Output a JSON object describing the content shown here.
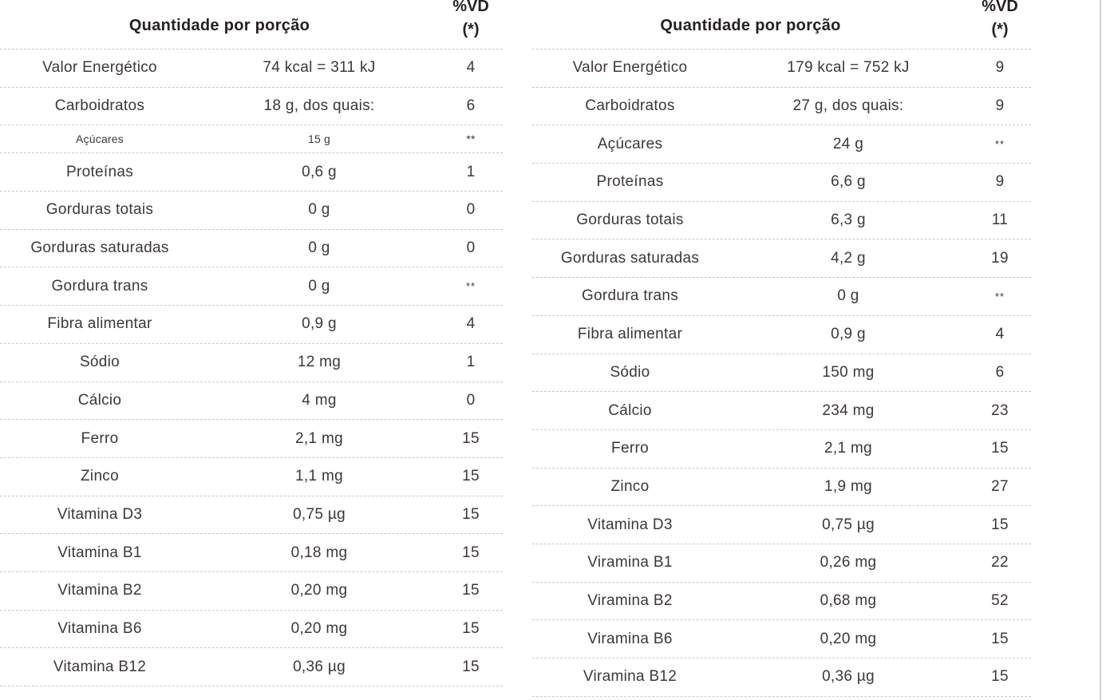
{
  "page": {
    "background": "#ffffff",
    "text_color": "#3e3836",
    "header_text_color": "#262120",
    "divider_color": "#c8c8c8",
    "scrollbar_color": "#d2d2d2"
  },
  "tables": [
    {
      "id": "nutrition-table-1",
      "header": {
        "title": "Quantidade por porção",
        "vd_line1": "%VD",
        "vd_line2": "(*)"
      },
      "rows": [
        {
          "label": "Valor Energético",
          "value": "74 kcal = 311 kJ",
          "vd": "4",
          "small": false
        },
        {
          "label": "Carboidratos",
          "value": "18 g, dos quais:",
          "vd": "6",
          "small": false
        },
        {
          "label": "Açúcares",
          "value": "15 g",
          "vd": "**",
          "small": true
        },
        {
          "label": "Proteínas",
          "value": "0,6 g",
          "vd": "1",
          "small": false
        },
        {
          "label": "Gorduras totais",
          "value": "0 g",
          "vd": "0",
          "small": false
        },
        {
          "label": "Gorduras saturadas",
          "value": "0 g",
          "vd": "0",
          "small": false
        },
        {
          "label": "Gordura trans",
          "value": "0 g",
          "vd": "**",
          "small": false
        },
        {
          "label": "Fibra alimentar",
          "value": "0,9 g",
          "vd": "4",
          "small": false
        },
        {
          "label": "Sódio",
          "value": "12 mg",
          "vd": "1",
          "small": false
        },
        {
          "label": "Cálcio",
          "value": "4 mg",
          "vd": "0",
          "small": false
        },
        {
          "label": "Ferro",
          "value": "2,1 mg",
          "vd": "15",
          "small": false
        },
        {
          "label": "Zinco",
          "value": "1,1 mg",
          "vd": "15",
          "small": false
        },
        {
          "label": "Vitamina D3",
          "value": "0,75 µg",
          "vd": "15",
          "small": false
        },
        {
          "label": "Vitamina B1",
          "value": "0,18 mg",
          "vd": "15",
          "small": false
        },
        {
          "label": "Vitamina B2",
          "value": "0,20 mg",
          "vd": "15",
          "small": false
        },
        {
          "label": "Vitamina B6",
          "value": "0,20 mg",
          "vd": "15",
          "small": false
        },
        {
          "label": "Vitamina B12",
          "value": "0,36 µg",
          "vd": "15",
          "small": false
        }
      ]
    },
    {
      "id": "nutrition-table-2",
      "header": {
        "title": "Quantidade por porção",
        "vd_line1": "%VD",
        "vd_line2": "(*)"
      },
      "rows": [
        {
          "label": "Valor Energético",
          "value": "179 kcal = 752 kJ",
          "vd": "9",
          "small": false
        },
        {
          "label": "Carboidratos",
          "value": "27 g, dos quais:",
          "vd": "9",
          "small": false
        },
        {
          "label": "Açúcares",
          "value": "24 g",
          "vd": "**",
          "small": false
        },
        {
          "label": "Proteínas",
          "value": "6,6 g",
          "vd": "9",
          "small": false
        },
        {
          "label": "Gorduras totais",
          "value": "6,3 g",
          "vd": "11",
          "small": false
        },
        {
          "label": "Gorduras saturadas",
          "value": "4,2 g",
          "vd": "19",
          "small": false
        },
        {
          "label": "Gordura trans",
          "value": "0 g",
          "vd": "**",
          "small": false
        },
        {
          "label": "Fibra alimentar",
          "value": "0,9 g",
          "vd": "4",
          "small": false
        },
        {
          "label": "Sódio",
          "value": "150 mg",
          "vd": "6",
          "small": false
        },
        {
          "label": "Cálcio",
          "value": "234 mg",
          "vd": "23",
          "small": false
        },
        {
          "label": "Ferro",
          "value": "2,1 mg",
          "vd": "15",
          "small": false
        },
        {
          "label": "Zinco",
          "value": "1,9 mg",
          "vd": "27",
          "small": false
        },
        {
          "label": "Vitamina D3",
          "value": "0,75 µg",
          "vd": "15",
          "small": false
        },
        {
          "label": "Viramina B1",
          "value": "0,26 mg",
          "vd": "22",
          "small": false
        },
        {
          "label": "Viramina B2",
          "value": "0,68 mg",
          "vd": "52",
          "small": false
        },
        {
          "label": "Viramina B6",
          "value": "0,20 mg",
          "vd": "15",
          "small": false
        },
        {
          "label": "Viramina B12",
          "value": "0,36 µg",
          "vd": "15",
          "small": false
        }
      ]
    }
  ]
}
